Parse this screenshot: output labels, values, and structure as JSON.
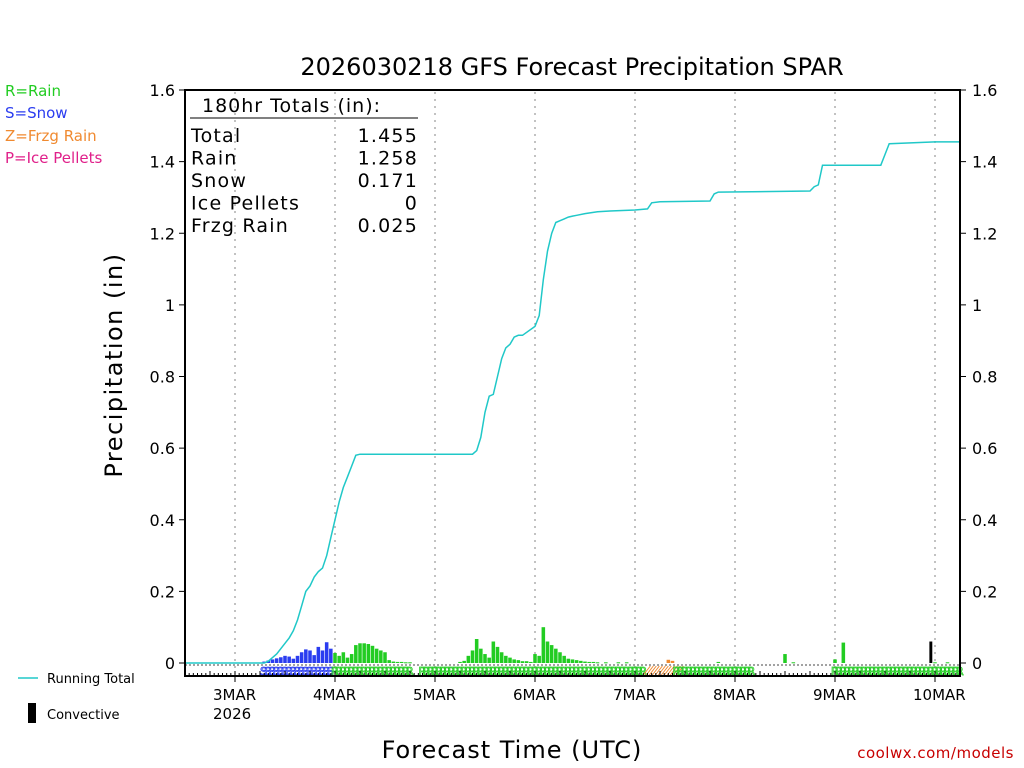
{
  "colors": {
    "running_total": "#20c8c8",
    "rain": "#22cc22",
    "snow": "#2a3cf0",
    "frzg": "#f08a30",
    "ice": "#e0208a",
    "convective": "#000000",
    "watermark": "#c80000"
  },
  "legend_top": [
    {
      "label": "R=Rain",
      "color": "#22cc22"
    },
    {
      "label": "S=Snow",
      "color": "#2a3cf0"
    },
    {
      "label": "Z=Frzg Rain",
      "color": "#f08a30"
    },
    {
      "label": "P=Ice Pellets",
      "color": "#e0208a"
    }
  ],
  "legend_bottom": {
    "running_total": "Running Total",
    "convective": "Convective"
  },
  "watermark": "coolwx.com/models",
  "chart_data": {
    "type": "bar",
    "title": "2026030218 GFS Forecast Precipitation SPAR",
    "xlabel": "Forecast Time (UTC)",
    "ylabel": "Precipitation (in)",
    "ylim": [
      0,
      1.6
    ],
    "y_ticks": [
      "0",
      "0.2",
      "0.4",
      "0.6",
      "0.8",
      "1",
      "1.2",
      "1.4",
      "1.6"
    ],
    "x_range_hours": [
      -6,
      180
    ],
    "x_ticks": [
      {
        "label": "3MAR",
        "sub": "2026",
        "hour": 6
      },
      {
        "label": "4MAR",
        "hour": 30
      },
      {
        "label": "5MAR",
        "hour": 54
      },
      {
        "label": "6MAR",
        "hour": 78
      },
      {
        "label": "7MAR",
        "hour": 102
      },
      {
        "label": "8MAR",
        "hour": 126
      },
      {
        "label": "9MAR",
        "hour": 150
      },
      {
        "label": "10MAR",
        "hour": 174
      }
    ],
    "totals_box": {
      "heading": "180hr Totals (in):",
      "rows": [
        {
          "label": "Total",
          "value": "1.455"
        },
        {
          "label": "Rain",
          "value": "1.258"
        },
        {
          "label": "Snow",
          "value": "0.171"
        },
        {
          "label": "Ice Pellets",
          "value": "0"
        },
        {
          "label": "Frzg Rain",
          "value": "0.025"
        }
      ]
    },
    "running_total": {
      "hours": [
        -6,
        6,
        13,
        14,
        15,
        16,
        17,
        18,
        19,
        20,
        21,
        22,
        23,
        24,
        25,
        26,
        27,
        28,
        29,
        30,
        31,
        32,
        33,
        34,
        35,
        36,
        37,
        38,
        39,
        63,
        64,
        65,
        66,
        67,
        68,
        69,
        70,
        71,
        72,
        73,
        74,
        75,
        78,
        79,
        80,
        81,
        82,
        83,
        84,
        85,
        86,
        87,
        88,
        90,
        93,
        96,
        102,
        105,
        106,
        108,
        120,
        121,
        122,
        144,
        145,
        146,
        147,
        161,
        162,
        163,
        174,
        175,
        179,
        180
      ],
      "values": [
        0,
        0,
        0,
        0.005,
        0.015,
        0.025,
        0.04,
        0.055,
        0.07,
        0.09,
        0.12,
        0.16,
        0.2,
        0.215,
        0.24,
        0.255,
        0.265,
        0.3,
        0.35,
        0.4,
        0.45,
        0.49,
        0.52,
        0.55,
        0.58,
        0.583,
        0.583,
        0.583,
        0.583,
        0.583,
        0.593,
        0.63,
        0.7,
        0.745,
        0.75,
        0.8,
        0.85,
        0.88,
        0.89,
        0.91,
        0.915,
        0.915,
        0.94,
        0.97,
        1.07,
        1.15,
        1.2,
        1.23,
        1.235,
        1.24,
        1.245,
        1.248,
        1.25,
        1.255,
        1.26,
        1.262,
        1.265,
        1.268,
        1.285,
        1.288,
        1.29,
        1.31,
        1.315,
        1.318,
        1.33,
        1.335,
        1.39,
        1.39,
        1.42,
        1.45,
        1.455,
        1.455,
        1.455,
        1.455
      ]
    },
    "hourly_bars": {
      "rain_hours": [
        30,
        31,
        32,
        33,
        34,
        35,
        36,
        37,
        38,
        39,
        40,
        41,
        42,
        43,
        44,
        45,
        46,
        47,
        48,
        60,
        61,
        62,
        63,
        64,
        65,
        66,
        67,
        68,
        69,
        70,
        71,
        72,
        73,
        74,
        75,
        76,
        77,
        78,
        79,
        80,
        81,
        82,
        83,
        84,
        85,
        86,
        87,
        88,
        89,
        90,
        91,
        92,
        93,
        95,
        98,
        100,
        122,
        138,
        140,
        150,
        152,
        174,
        177
      ],
      "rain_values": [
        0.028,
        0.02,
        0.03,
        0.015,
        0.025,
        0.05,
        0.055,
        0.055,
        0.053,
        0.048,
        0.04,
        0.035,
        0.03,
        0.008,
        0.004,
        0.003,
        0.003,
        0.002,
        0.002,
        0.003,
        0.006,
        0.02,
        0.035,
        0.067,
        0.04,
        0.025,
        0.015,
        0.06,
        0.045,
        0.03,
        0.02,
        0.015,
        0.01,
        0.008,
        0.005,
        0.005,
        0.003,
        0.025,
        0.02,
        0.1,
        0.06,
        0.05,
        0.04,
        0.03,
        0.02,
        0.012,
        0.01,
        0.008,
        0.006,
        0.004,
        0.003,
        0.003,
        0.002,
        0.002,
        0.002,
        0.002,
        0.003,
        0.025,
        0.002,
        0.01,
        0.057,
        0.002,
        0.002
      ],
      "snow_hours": [
        13,
        14,
        15,
        16,
        17,
        18,
        19,
        20,
        21,
        22,
        23,
        24,
        25,
        26,
        27,
        28,
        29
      ],
      "snow_values": [
        0.004,
        0.007,
        0.01,
        0.013,
        0.016,
        0.02,
        0.018,
        0.012,
        0.02,
        0.03,
        0.038,
        0.035,
        0.022,
        0.045,
        0.035,
        0.058,
        0.04
      ],
      "frzg_hours": [
        110,
        111
      ],
      "frzg_values": [
        0.009,
        0.006
      ],
      "convective_hours": [
        173
      ],
      "convective_values": [
        0.06
      ]
    },
    "ptype_track": [
      {
        "type": "S",
        "start_hour": 13,
        "end_hour": 29
      },
      {
        "type": "R",
        "start_hour": 30,
        "end_hour": 48
      },
      {
        "type": "R",
        "start_hour": 51,
        "end_hour": 62
      },
      {
        "type": "R",
        "start_hour": 63,
        "end_hour": 104
      },
      {
        "type": "Z",
        "start_hour": 104,
        "end_hour": 112
      },
      {
        "type": "R",
        "start_hour": 112,
        "end_hour": 130
      },
      {
        "type": "R",
        "start_hour": 150,
        "end_hour": 180
      }
    ]
  }
}
